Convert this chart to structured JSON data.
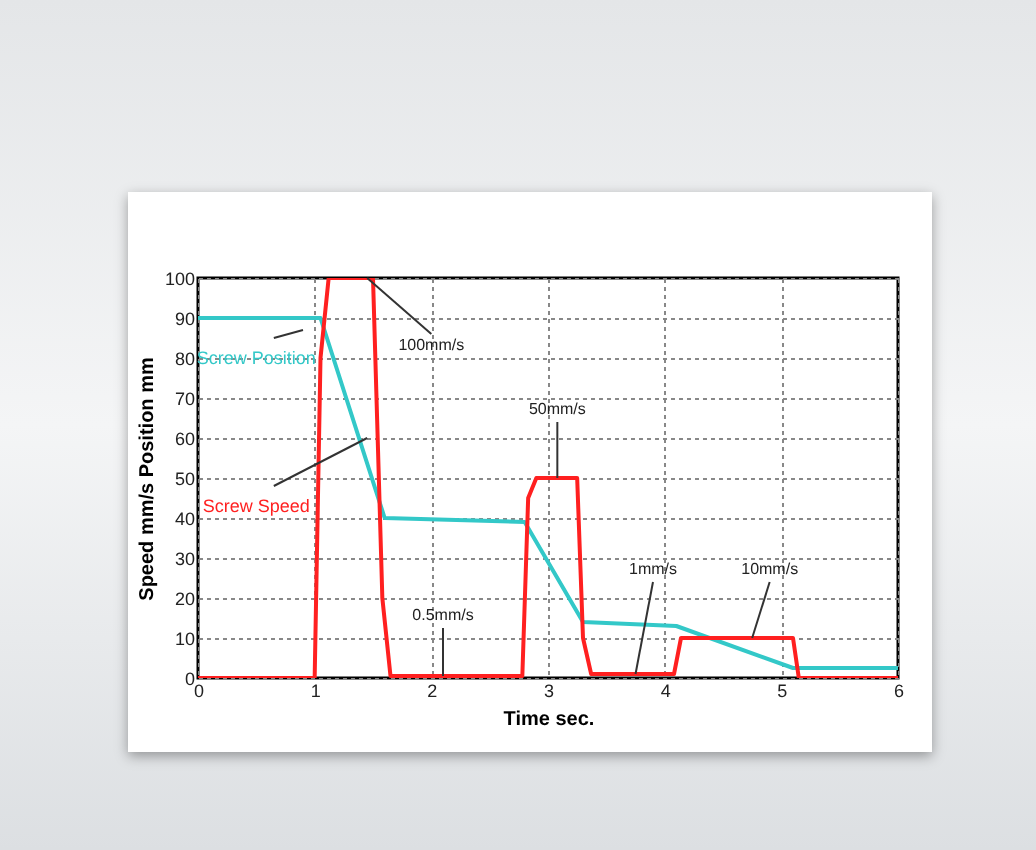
{
  "chart_data": {
    "type": "line",
    "xlabel": "Time sec.",
    "ylabel": "Speed mm/s    Position mm",
    "xlim": [
      0,
      6
    ],
    "ylim": [
      0,
      100
    ],
    "xticks": [
      0,
      1,
      2,
      3,
      4,
      5,
      6
    ],
    "yticks": [
      0,
      10,
      20,
      30,
      40,
      50,
      60,
      70,
      80,
      90,
      100
    ],
    "grid": true,
    "legend": false,
    "line_style": "solid",
    "marker": "none",
    "series": [
      {
        "name": "Screw Position",
        "color": "#33c8c8",
        "x": [
          0,
          1.05,
          1.6,
          2.8,
          3.3,
          4.1,
          5.1,
          6
        ],
        "values": [
          90,
          90,
          40,
          39,
          14,
          13,
          2.5,
          2.5
        ]
      },
      {
        "name": "Screw Speed",
        "color": "#ff2020",
        "x": [
          0,
          1.0,
          1.05,
          1.12,
          1.5,
          1.58,
          1.65,
          2.78,
          2.83,
          2.9,
          3.25,
          3.3,
          3.37,
          4.08,
          4.14,
          5.1,
          5.15,
          6
        ],
        "values": [
          0,
          0,
          80,
          100,
          100,
          20,
          0.5,
          0.5,
          45,
          50,
          50,
          10,
          1,
          1,
          10,
          10,
          0,
          0
        ]
      }
    ],
    "annotations": [
      {
        "text": "100mm/s",
        "x": 1.45,
        "y": 100
      },
      {
        "text": "0.5mm/s",
        "x": 2.1,
        "y": 0.5
      },
      {
        "text": "50mm/s",
        "x": 3.08,
        "y": 50
      },
      {
        "text": "1mm/s",
        "x": 3.75,
        "y": 1
      },
      {
        "text": "10mm/s",
        "x": 4.75,
        "y": 10
      }
    ]
  }
}
